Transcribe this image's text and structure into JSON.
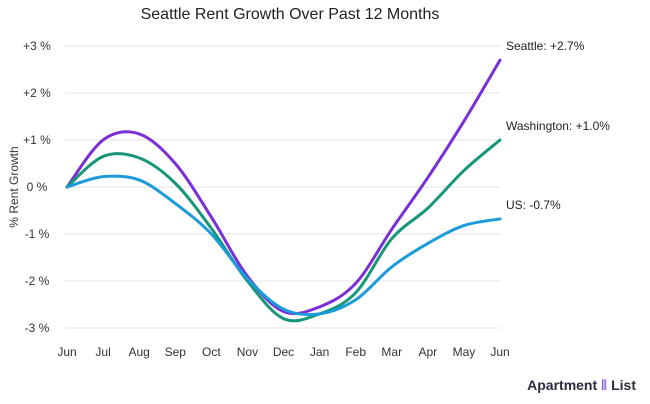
{
  "chart_data": {
    "type": "line",
    "title": "Seattle Rent Growth Over Past 12 Months",
    "xlabel": "",
    "ylabel": "% Rent Growth",
    "categories": [
      "Jun",
      "Jul",
      "Aug",
      "Sep",
      "Oct",
      "Nov",
      "Dec",
      "Jan",
      "Feb",
      "Mar",
      "Apr",
      "May",
      "Jun"
    ],
    "ylim": [
      -3,
      3
    ],
    "yticks": [
      3,
      2,
      1,
      0,
      -1,
      -2,
      -3
    ],
    "ytick_labels": [
      "+3 %",
      "+2 %",
      "+1 %",
      "0 %",
      "-1 %",
      "-2 %",
      "-3 %"
    ],
    "grid": true,
    "legend": "end-of-line labels",
    "series": [
      {
        "name": "Seattle",
        "end_label": "Seattle: +2.7%",
        "color": "#7b2fd6",
        "values": [
          0,
          1.0,
          1.13,
          0.5,
          -0.64,
          -1.9,
          -2.65,
          -2.55,
          -2.05,
          -0.9,
          0.2,
          1.4,
          2.7
        ]
      },
      {
        "name": "Washington",
        "end_label": "Washington: +1.0%",
        "color": "#17977a",
        "values": [
          0,
          0.65,
          0.62,
          0.08,
          -0.88,
          -2.0,
          -2.8,
          -2.7,
          -2.25,
          -1.1,
          -0.45,
          0.35,
          1.0
        ]
      },
      {
        "name": "US",
        "end_label": "US: -0.7%",
        "color": "#1b9bd9",
        "values": [
          0,
          0.22,
          0.15,
          -0.35,
          -1.0,
          -1.95,
          -2.6,
          -2.7,
          -2.4,
          -1.7,
          -1.2,
          -0.82,
          -0.68
        ]
      }
    ]
  },
  "logo": {
    "text_left": "Apartment",
    "text_right": "List"
  }
}
